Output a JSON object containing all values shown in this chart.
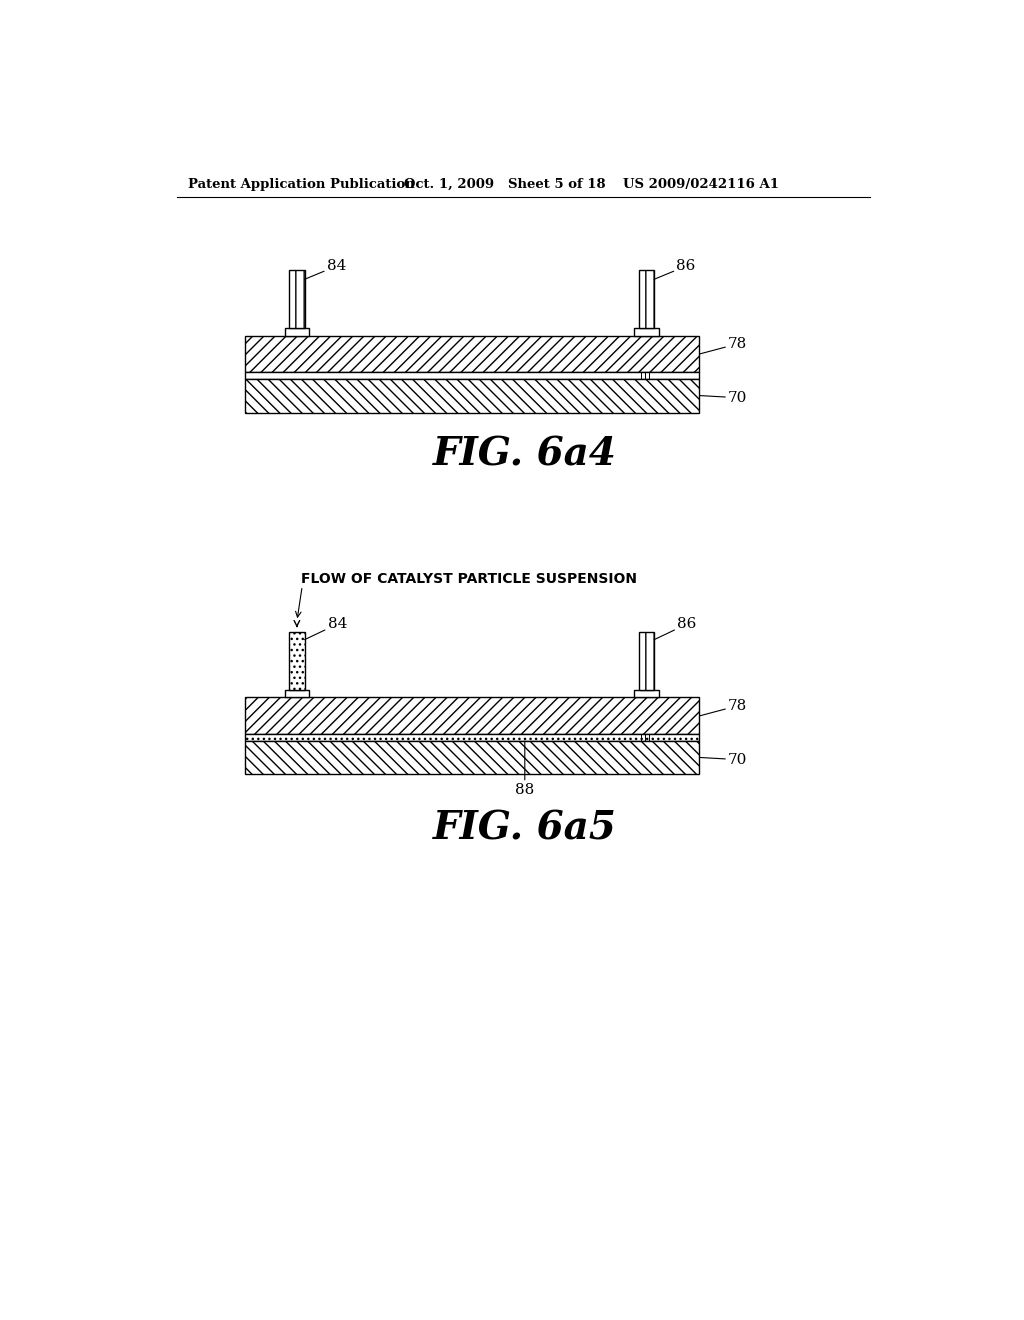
{
  "bg_color": "#ffffff",
  "header_left": "Patent Application Publication",
  "header_mid": "Oct. 1, 2009   Sheet 5 of 18",
  "header_right": "US 2009/0242116 A1",
  "fig1_label": "FIG. 6a4",
  "fig2_label": "FIG. 6a5",
  "fig2_annotation": "FLOW OF CATALYST PARTICLE SUSPENSION",
  "line_color": "#000000"
}
